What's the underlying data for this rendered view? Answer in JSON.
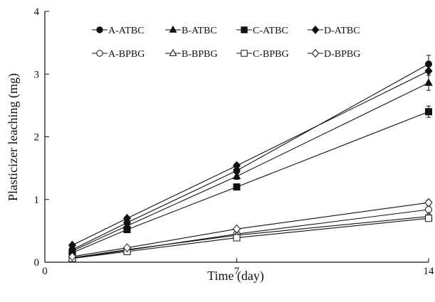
{
  "chart_data": {
    "type": "line",
    "title": "",
    "xlabel": "Time (day)",
    "ylabel": "Plasticizer leaching (mg)",
    "xlim": [
      0,
      14
    ],
    "ylim": [
      0,
      4
    ],
    "x_ticks": [
      "0",
      "7",
      "14"
    ],
    "y_ticks": [
      "0",
      "1",
      "2",
      "3",
      "4"
    ],
    "grid": false,
    "legend_position": "top-left, two rows",
    "x": [
      1,
      3,
      7,
      14
    ],
    "series": [
      {
        "name": "A-ATBC",
        "marker": "circle",
        "filled": true,
        "values": [
          0.2,
          0.63,
          1.46,
          3.16
        ],
        "errors": [
          0.02,
          0.03,
          0.05,
          0.14
        ]
      },
      {
        "name": "B-ATBC",
        "marker": "triangle",
        "filled": true,
        "values": [
          0.18,
          0.58,
          1.37,
          2.86
        ],
        "errors": [
          0.02,
          0.03,
          0.05,
          0.12
        ]
      },
      {
        "name": "C-ATBC",
        "marker": "square",
        "filled": true,
        "values": [
          0.15,
          0.52,
          1.2,
          2.4
        ],
        "errors": [
          0.02,
          0.03,
          0.04,
          0.09
        ]
      },
      {
        "name": "D-ATBC",
        "marker": "diamond",
        "filled": true,
        "values": [
          0.27,
          0.7,
          1.54,
          3.05
        ],
        "errors": [
          0.02,
          0.03,
          0.04,
          0.07
        ]
      },
      {
        "name": "A-BPBG",
        "marker": "circle",
        "filled": false,
        "values": [
          0.06,
          0.19,
          0.45,
          0.84
        ],
        "errors": [
          0.01,
          0.02,
          0.03,
          0.07
        ]
      },
      {
        "name": "B-BPBG",
        "marker": "triangle",
        "filled": false,
        "values": [
          0.07,
          0.2,
          0.43,
          0.73
        ],
        "errors": [
          0.01,
          0.02,
          0.02,
          0.04
        ]
      },
      {
        "name": "C-BPBG",
        "marker": "square",
        "filled": false,
        "values": [
          0.06,
          0.17,
          0.39,
          0.7
        ],
        "errors": [
          0.01,
          0.02,
          0.02,
          0.03
        ]
      },
      {
        "name": "D-BPBG",
        "marker": "diamond",
        "filled": false,
        "values": [
          0.09,
          0.23,
          0.53,
          0.95
        ],
        "errors": [
          0.01,
          0.02,
          0.03,
          0.04
        ]
      }
    ],
    "colors": {
      "ink": "#111111",
      "background": "#ffffff"
    }
  }
}
